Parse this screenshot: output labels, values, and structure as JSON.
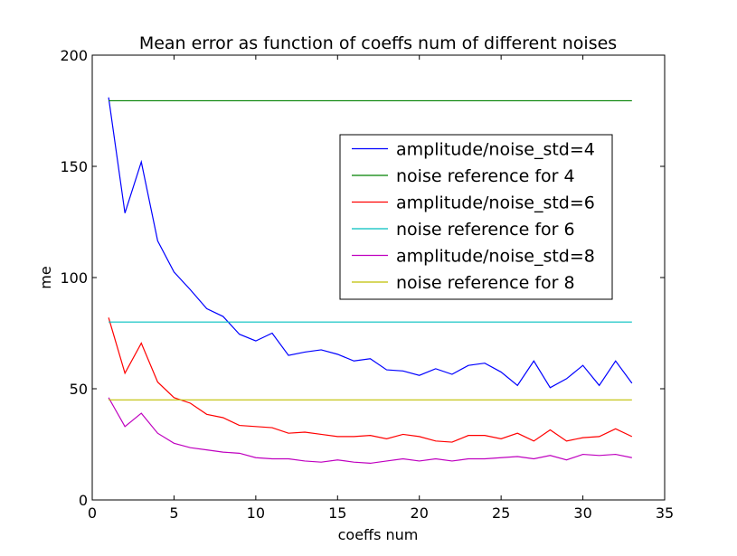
{
  "chart_data": {
    "type": "line",
    "title": "Mean error as function of coeffs num of different noises",
    "xlabel": "coeffs num",
    "ylabel": "me",
    "xlim": [
      0,
      35
    ],
    "ylim": [
      0,
      200
    ],
    "xticks": [
      0,
      5,
      10,
      15,
      20,
      25,
      30,
      35
    ],
    "yticks": [
      0,
      50,
      100,
      150,
      200
    ],
    "grid": false,
    "legend_position": "upper-right",
    "x": [
      1,
      2,
      3,
      4,
      5,
      6,
      7,
      8,
      9,
      10,
      11,
      12,
      13,
      14,
      15,
      16,
      17,
      18,
      19,
      20,
      21,
      22,
      23,
      24,
      25,
      26,
      27,
      28,
      29,
      30,
      31,
      32,
      33
    ],
    "series": [
      {
        "name": "amplitude/noise_std=4",
        "color": "#0000ff",
        "values": [
          181,
          129,
          152,
          116.5,
          102.5,
          94.5,
          86,
          82.5,
          74.5,
          71.5,
          75,
          65,
          66.5,
          67.5,
          65.5,
          62.5,
          63.5,
          58.5,
          58,
          56,
          59,
          56.5,
          60.5,
          61.5,
          57.5,
          51.5,
          62.5,
          50.5,
          54.5,
          60.5,
          51.5,
          62.5,
          52.5
        ]
      },
      {
        "name": "noise reference for 4",
        "color": "#008000",
        "values": [
          179.5,
          179.5,
          179.5,
          179.5,
          179.5,
          179.5,
          179.5,
          179.5,
          179.5,
          179.5,
          179.5,
          179.5,
          179.5,
          179.5,
          179.5,
          179.5,
          179.5,
          179.5,
          179.5,
          179.5,
          179.5,
          179.5,
          179.5,
          179.5,
          179.5,
          179.5,
          179.5,
          179.5,
          179.5,
          179.5,
          179.5,
          179.5,
          179.5
        ]
      },
      {
        "name": "amplitude/noise_std=6",
        "color": "#ff0000",
        "values": [
          82,
          57,
          70.5,
          53,
          46,
          43.5,
          38.5,
          37,
          33.5,
          33,
          32.5,
          30,
          30.5,
          29.5,
          28.5,
          28.5,
          29,
          27.5,
          29.5,
          28.5,
          26.5,
          26,
          29,
          29,
          27.5,
          30,
          26.5,
          31.5,
          26.5,
          28,
          28.5,
          32,
          28.5
        ]
      },
      {
        "name": "noise reference for 6",
        "color": "#00bfbf",
        "values": [
          80,
          80,
          80,
          80,
          80,
          80,
          80,
          80,
          80,
          80,
          80,
          80,
          80,
          80,
          80,
          80,
          80,
          80,
          80,
          80,
          80,
          80,
          80,
          80,
          80,
          80,
          80,
          80,
          80,
          80,
          80,
          80,
          80
        ]
      },
      {
        "name": "amplitude/noise_std=8",
        "color": "#bf00bf",
        "values": [
          46,
          33,
          39,
          30,
          25.5,
          23.5,
          22.5,
          21.5,
          21,
          19,
          18.5,
          18.5,
          17.5,
          17,
          18,
          17,
          16.5,
          17.5,
          18.5,
          17.5,
          18.5,
          17.5,
          18.5,
          18.5,
          19,
          19.5,
          18.5,
          20,
          18,
          20.5,
          20,
          20.5,
          19
        ]
      },
      {
        "name": "noise reference for 8",
        "color": "#bfbf00",
        "values": [
          45,
          45,
          45,
          45,
          45,
          45,
          45,
          45,
          45,
          45,
          45,
          45,
          45,
          45,
          45,
          45,
          45,
          45,
          45,
          45,
          45,
          45,
          45,
          45,
          45,
          45,
          45,
          45,
          45,
          45,
          45,
          45,
          45
        ]
      }
    ]
  }
}
